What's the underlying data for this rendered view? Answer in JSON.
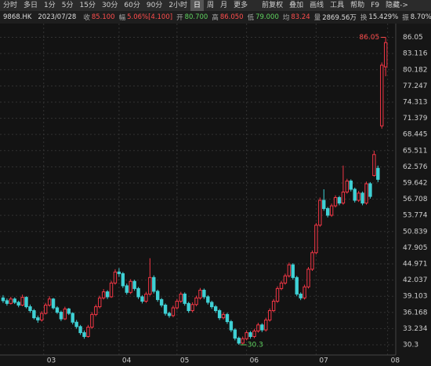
{
  "toolbar": {
    "tabs": [
      "分时",
      "多日",
      "1分",
      "5分",
      "15分",
      "30分",
      "60分",
      "90分",
      "2小时",
      "日",
      "周",
      "月",
      "更多"
    ],
    "active": 9,
    "tools": [
      "前复权",
      "叠加",
      "画线",
      "工具",
      "帮助",
      "F9",
      "隐藏->"
    ]
  },
  "info": {
    "code": "9868.HK",
    "date": "2023/07/28",
    "items": [
      {
        "label": "收",
        "value": "85.100",
        "color": "#ff4d4d"
      },
      {
        "label": "幅",
        "value": "5.06%[4.100]",
        "color": "#ff4d4d"
      },
      {
        "label": "开",
        "value": "80.700",
        "color": "#5fd35f"
      },
      {
        "label": "高",
        "value": "86.050",
        "color": "#ff4d4d"
      },
      {
        "label": "低",
        "value": "79.000",
        "color": "#5fd35f"
      },
      {
        "label": "均",
        "value": "83.24",
        "color": "#ff4d4d"
      },
      {
        "label": "量",
        "value": "2869.56万",
        "color": "#dddddd"
      },
      {
        "label": "换",
        "value": "15.429%",
        "color": "#dddddd"
      },
      {
        "label": "振",
        "value": "8.70%",
        "color": "#dddddd"
      }
    ]
  },
  "chart_data": {
    "type": "candlestick",
    "up_color": "#f23645",
    "down_color": "#3fd0d4",
    "grid": true,
    "ylim": [
      28.45,
      88.55
    ],
    "yticks": [
      86.05,
      83.116,
      80.182,
      77.247,
      74.313,
      71.379,
      68.445,
      65.511,
      62.576,
      59.642,
      56.708,
      53.774,
      50.839,
      47.905,
      44.971,
      42.037,
      39.103,
      36.168,
      33.234,
      30.3
    ],
    "xlim": [
      -0.8,
      101.6
    ],
    "xticks": [
      {
        "value": 10.5,
        "label": "03"
      },
      {
        "value": 30,
        "label": "04"
      },
      {
        "value": 45,
        "label": "05"
      },
      {
        "value": 63,
        "label": "06"
      },
      {
        "value": 81,
        "label": "07"
      },
      {
        "value": 99.5,
        "label": "08"
      }
    ],
    "open": [
      38.8,
      38.3,
      37.8,
      38.6,
      38.0,
      37.5,
      38.9,
      37.2,
      36.5,
      35.2,
      34.8,
      36.0,
      37.5,
      38.6,
      37.0,
      36.2,
      35.0,
      36.8,
      36.0,
      34.4,
      33.6,
      32.5,
      31.8,
      33.5,
      35.8,
      37.2,
      38.8,
      39.9,
      39.0,
      41.5,
      43.5,
      43.2,
      41.0,
      39.8,
      41.8,
      40.5,
      39.0,
      38.2,
      39.5,
      42.5,
      40.0,
      38.5,
      37.5,
      36.0,
      35.6,
      37.0,
      38.2,
      39.5,
      37.8,
      36.5,
      37.6,
      38.8,
      40.2,
      39.0,
      38.0,
      37.2,
      36.5,
      35.2,
      35.8,
      34.5,
      33.0,
      31.5,
      30.6,
      31.4,
      32.5,
      31.8,
      32.8,
      33.9,
      33.0,
      34.8,
      36.5,
      38.2,
      40.5,
      41.5,
      42.8,
      44.8,
      42.5,
      39.5,
      38.8,
      40.8,
      44.0,
      47.0,
      52.0,
      56.5,
      55.0,
      53.8,
      55.5,
      57.0,
      56.0,
      58.0,
      60.0,
      58.5,
      56.5,
      57.8,
      56.0,
      59.5,
      61.0,
      62.3,
      70.0,
      80.7
    ],
    "high": [
      39.3,
      38.7,
      39.0,
      38.9,
      38.3,
      39.4,
      39.1,
      37.6,
      36.8,
      35.6,
      36.4,
      37.9,
      39.1,
      38.8,
      37.3,
      36.5,
      37.2,
      37.0,
      36.2,
      34.8,
      33.9,
      32.9,
      33.9,
      36.2,
      37.6,
      39.2,
      40.4,
      40.2,
      41.9,
      44.0,
      44.2,
      43.5,
      41.4,
      42.2,
      42.1,
      40.8,
      39.3,
      39.9,
      46.0,
      42.9,
      40.3,
      38.8,
      37.8,
      36.3,
      37.4,
      38.6,
      39.9,
      39.8,
      38.1,
      38.0,
      39.2,
      40.6,
      40.5,
      39.3,
      38.3,
      37.5,
      36.8,
      36.2,
      36.1,
      34.8,
      33.3,
      31.8,
      31.8,
      32.9,
      32.8,
      33.2,
      34.3,
      34.2,
      35.2,
      36.9,
      38.6,
      40.9,
      41.9,
      43.2,
      45.2,
      45.1,
      42.8,
      39.8,
      41.2,
      44.4,
      47.4,
      52.4,
      57.0,
      58.5,
      55.3,
      55.9,
      57.4,
      57.3,
      62.8,
      60.4,
      60.3,
      58.8,
      58.2,
      58.1,
      59.9,
      59.8,
      65.5,
      62.8,
      81.5,
      86.05
    ],
    "low": [
      37.9,
      37.4,
      37.6,
      37.7,
      37.1,
      37.3,
      36.9,
      36.1,
      34.9,
      34.3,
      34.5,
      35.8,
      37.2,
      36.7,
      35.9,
      34.6,
      34.8,
      35.7,
      34.0,
      33.2,
      32.1,
      31.4,
      31.6,
      33.2,
      35.5,
      36.9,
      38.5,
      38.6,
      38.8,
      41.2,
      42.6,
      40.6,
      39.4,
      39.5,
      40.1,
      38.6,
      37.8,
      37.9,
      39.2,
      39.6,
      38.1,
      37.1,
      35.6,
      35.2,
      35.3,
      36.7,
      37.9,
      37.4,
      36.1,
      36.2,
      37.3,
      38.5,
      38.6,
      37.6,
      36.8,
      36.1,
      34.8,
      34.9,
      34.1,
      32.6,
      31.1,
      30.3,
      30.4,
      31.1,
      31.4,
      31.5,
      32.5,
      32.6,
      32.7,
      34.5,
      36.2,
      37.9,
      40.2,
      41.2,
      42.5,
      42.1,
      39.1,
      38.4,
      38.5,
      40.5,
      43.7,
      46.7,
      51.7,
      54.6,
      53.4,
      53.5,
      55.2,
      55.6,
      55.7,
      57.7,
      58.1,
      56.1,
      56.2,
      55.6,
      55.7,
      56.8,
      60.8,
      59.8,
      69.5,
      79.0
    ],
    "close": [
      38.3,
      37.8,
      38.6,
      38.0,
      37.5,
      38.9,
      37.2,
      36.5,
      35.2,
      34.8,
      36.0,
      37.5,
      38.6,
      37.0,
      36.2,
      35.0,
      36.8,
      36.0,
      34.4,
      33.6,
      32.5,
      31.8,
      33.5,
      35.8,
      37.2,
      38.8,
      39.9,
      39.0,
      41.5,
      43.5,
      43.2,
      41.0,
      39.8,
      41.8,
      40.5,
      39.0,
      38.2,
      39.5,
      42.5,
      40.0,
      38.5,
      37.5,
      36.0,
      35.6,
      37.0,
      38.2,
      39.5,
      37.8,
      36.5,
      37.6,
      38.8,
      40.2,
      39.0,
      38.0,
      37.2,
      36.5,
      35.2,
      35.8,
      34.5,
      33.0,
      31.5,
      30.6,
      31.4,
      32.5,
      31.8,
      32.8,
      33.9,
      33.0,
      34.8,
      36.5,
      38.2,
      40.5,
      41.5,
      42.8,
      44.8,
      42.5,
      39.5,
      38.8,
      40.8,
      44.0,
      47.0,
      52.0,
      56.5,
      55.0,
      53.8,
      55.5,
      57.0,
      56.0,
      58.0,
      60.0,
      58.5,
      56.5,
      57.8,
      56.0,
      59.5,
      57.2,
      64.8,
      60.3,
      81.0,
      85.1
    ],
    "annotations": [
      {
        "text": "86.05",
        "index": 99,
        "field": "high",
        "color": "#ff4d4d"
      },
      {
        "text": "30.3",
        "index": 61,
        "field": "low",
        "color": "#5fd35f"
      }
    ]
  }
}
